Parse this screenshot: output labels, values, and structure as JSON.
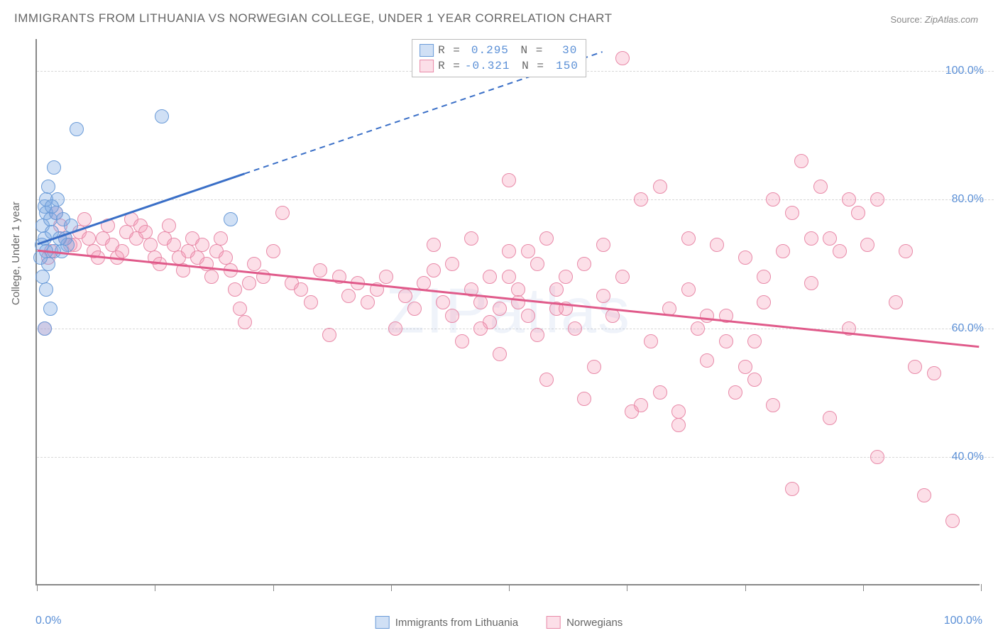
{
  "title": "IMMIGRANTS FROM LITHUANIA VS NORWEGIAN COLLEGE, UNDER 1 YEAR CORRELATION CHART",
  "source_prefix": "Source: ",
  "source": "ZipAtlas.com",
  "watermark": "ZIPatlas",
  "ylabel": "College, Under 1 year",
  "chart": {
    "type": "scatter",
    "xlim": [
      0,
      100
    ],
    "ylim": [
      20,
      105
    ],
    "x_ticks": [
      0,
      12.5,
      25,
      37.5,
      50,
      62.5,
      75,
      87.5,
      100
    ],
    "x_tick_labels_shown": {
      "0": "0.0%",
      "100": "100.0%"
    },
    "y_gridlines": [
      40,
      60,
      80,
      100
    ],
    "y_tick_labels": {
      "40": "40.0%",
      "60": "60.0%",
      "80": "80.0%",
      "100": "100.0%"
    },
    "background_color": "#ffffff",
    "grid_color": "#d8d8d8",
    "axis_color": "#888888",
    "tick_label_color": "#5a8fd6",
    "point_radius": 10,
    "series": {
      "lithuania": {
        "label": "Immigrants from Lithuania",
        "fill": "rgba(120,165,225,0.35)",
        "stroke": "#6a9bd8",
        "R": "0.295",
        "N": "30",
        "trend": {
          "x1": 0,
          "y1": 73,
          "x2_solid": 22,
          "y2_solid": 84,
          "x2_dash": 60,
          "y2_dash": 103,
          "color": "#3a6fc7",
          "width": 3
        },
        "points": [
          [
            0.5,
            73
          ],
          [
            0.6,
            76
          ],
          [
            0.8,
            79
          ],
          [
            1.0,
            80
          ],
          [
            1.2,
            82
          ],
          [
            1.0,
            78
          ],
          [
            1.4,
            77
          ],
          [
            0.8,
            74
          ],
          [
            1.6,
            75
          ],
          [
            2.0,
            78
          ],
          [
            1.8,
            72
          ],
          [
            1.2,
            70
          ],
          [
            0.6,
            68
          ],
          [
            1.0,
            66
          ],
          [
            1.4,
            63
          ],
          [
            0.8,
            60
          ],
          [
            2.2,
            80
          ],
          [
            2.8,
            77
          ],
          [
            1.8,
            85
          ],
          [
            4.2,
            91
          ],
          [
            3.0,
            74
          ],
          [
            3.6,
            76
          ],
          [
            3.2,
            73
          ],
          [
            13.2,
            93
          ],
          [
            20.5,
            77
          ],
          [
            1.0,
            72
          ],
          [
            0.4,
            71
          ],
          [
            2.4,
            74
          ],
          [
            1.6,
            79
          ],
          [
            2.6,
            72
          ]
        ]
      },
      "norwegians": {
        "label": "Norwegians",
        "fill": "rgba(245,150,180,0.30)",
        "stroke": "#e88aa8",
        "R": "-0.321",
        "N": "150",
        "trend": {
          "x1": 0,
          "y1": 72,
          "x2": 100,
          "y2": 57,
          "color": "#e05a8a",
          "width": 3
        },
        "points": [
          [
            0.8,
            60
          ],
          [
            1.2,
            71
          ],
          [
            1.5,
            72
          ],
          [
            2,
            78
          ],
          [
            2.5,
            76
          ],
          [
            3,
            74
          ],
          [
            3.5,
            73
          ],
          [
            4,
            73
          ],
          [
            4.5,
            75
          ],
          [
            5,
            77
          ],
          [
            5.5,
            74
          ],
          [
            6,
            72
          ],
          [
            6.5,
            71
          ],
          [
            7,
            74
          ],
          [
            7.5,
            76
          ],
          [
            8,
            73
          ],
          [
            8.5,
            71
          ],
          [
            9,
            72
          ],
          [
            9.5,
            75
          ],
          [
            10,
            77
          ],
          [
            10.5,
            74
          ],
          [
            11,
            76
          ],
          [
            11.5,
            75
          ],
          [
            12,
            73
          ],
          [
            12.5,
            71
          ],
          [
            13,
            70
          ],
          [
            13.5,
            74
          ],
          [
            14,
            76
          ],
          [
            14.5,
            73
          ],
          [
            15,
            71
          ],
          [
            15.5,
            69
          ],
          [
            16,
            72
          ],
          [
            16.5,
            74
          ],
          [
            17,
            71
          ],
          [
            17.5,
            73
          ],
          [
            18,
            70
          ],
          [
            18.5,
            68
          ],
          [
            19,
            72
          ],
          [
            19.5,
            74
          ],
          [
            20,
            71
          ],
          [
            20.5,
            69
          ],
          [
            21,
            66
          ],
          [
            21.5,
            63
          ],
          [
            22,
            61
          ],
          [
            22.5,
            67
          ],
          [
            23,
            70
          ],
          [
            24,
            68
          ],
          [
            25,
            72
          ],
          [
            26,
            78
          ],
          [
            27,
            67
          ],
          [
            28,
            66
          ],
          [
            29,
            64
          ],
          [
            30,
            69
          ],
          [
            31,
            59
          ],
          [
            32,
            68
          ],
          [
            33,
            65
          ],
          [
            34,
            67
          ],
          [
            35,
            64
          ],
          [
            36,
            66
          ],
          [
            37,
            68
          ],
          [
            38,
            60
          ],
          [
            39,
            65
          ],
          [
            40,
            63
          ],
          [
            41,
            67
          ],
          [
            42,
            69
          ],
          [
            43,
            64
          ],
          [
            44,
            62
          ],
          [
            45,
            58
          ],
          [
            46,
            66
          ],
          [
            47,
            64
          ],
          [
            48,
            61
          ],
          [
            49,
            56
          ],
          [
            50,
            68
          ],
          [
            51,
            64
          ],
          [
            52,
            62
          ],
          [
            53,
            59
          ],
          [
            54,
            52
          ],
          [
            55,
            66
          ],
          [
            56,
            63
          ],
          [
            57,
            60
          ],
          [
            58,
            49
          ],
          [
            59,
            54
          ],
          [
            60,
            65
          ],
          [
            61,
            62
          ],
          [
            62,
            102
          ],
          [
            63,
            47
          ],
          [
            64,
            48
          ],
          [
            65,
            58
          ],
          [
            66,
            50
          ],
          [
            67,
            63
          ],
          [
            68,
            47
          ],
          [
            69,
            74
          ],
          [
            50,
            83
          ],
          [
            52,
            72
          ],
          [
            54,
            74
          ],
          [
            56,
            68
          ],
          [
            58,
            70
          ],
          [
            60,
            73
          ],
          [
            62,
            68
          ],
          [
            64,
            80
          ],
          [
            66,
            82
          ],
          [
            68,
            45
          ],
          [
            70,
            60
          ],
          [
            71,
            55
          ],
          [
            72,
            73
          ],
          [
            73,
            62
          ],
          [
            74,
            50
          ],
          [
            75,
            71
          ],
          [
            76,
            58
          ],
          [
            77,
            64
          ],
          [
            78,
            80
          ],
          [
            80,
            78
          ],
          [
            81,
            86
          ],
          [
            82,
            67
          ],
          [
            83,
            82
          ],
          [
            84,
            46
          ],
          [
            85,
            72
          ],
          [
            86,
            60
          ],
          [
            87,
            78
          ],
          [
            88,
            73
          ],
          [
            89,
            40
          ],
          [
            82,
            74
          ],
          [
            80,
            35
          ],
          [
            78,
            48
          ],
          [
            76,
            52
          ],
          [
            89,
            80
          ],
          [
            91,
            64
          ],
          [
            92,
            72
          ],
          [
            93,
            54
          ],
          [
            94,
            34
          ],
          [
            97,
            30
          ],
          [
            84,
            74
          ],
          [
            86,
            80
          ],
          [
            69,
            66
          ],
          [
            71,
            62
          ],
          [
            73,
            58
          ],
          [
            75,
            54
          ],
          [
            77,
            68
          ],
          [
            79,
            72
          ],
          [
            95,
            53
          ],
          [
            42,
            73
          ],
          [
            44,
            70
          ],
          [
            46,
            74
          ],
          [
            48,
            68
          ],
          [
            50,
            72
          ],
          [
            47,
            60
          ],
          [
            49,
            63
          ],
          [
            51,
            66
          ],
          [
            53,
            70
          ],
          [
            55,
            63
          ]
        ]
      }
    }
  },
  "legend_bottom": [
    {
      "label": "Immigrants from Lithuania",
      "fill": "rgba(120,165,225,0.35)",
      "stroke": "#6a9bd8"
    },
    {
      "label": "Norwegians",
      "fill": "rgba(245,150,180,0.30)",
      "stroke": "#e88aa8"
    }
  ]
}
